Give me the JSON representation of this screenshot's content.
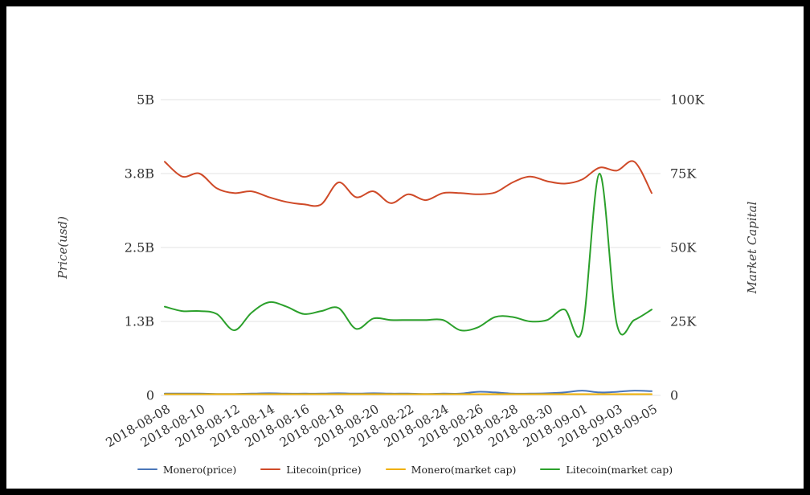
{
  "chart_data": {
    "type": "line",
    "title": "",
    "x": [
      "2018-08-08",
      "2018-08-09",
      "2018-08-10",
      "2018-08-11",
      "2018-08-12",
      "2018-08-13",
      "2018-08-14",
      "2018-08-15",
      "2018-08-16",
      "2018-08-17",
      "2018-08-18",
      "2018-08-19",
      "2018-08-20",
      "2018-08-21",
      "2018-08-22",
      "2018-08-23",
      "2018-08-24",
      "2018-08-25",
      "2018-08-26",
      "2018-08-27",
      "2018-08-28",
      "2018-08-29",
      "2018-08-30",
      "2018-08-31",
      "2018-09-01",
      "2018-09-02",
      "2018-09-03",
      "2018-09-04",
      "2018-09-05"
    ],
    "x_tick_labels": [
      "2018-08-08",
      "2018-08-10",
      "2018-08-12",
      "2018-08-14",
      "2018-08-16",
      "2018-08-18",
      "2018-08-20",
      "2018-08-22",
      "2018-08-24",
      "2018-08-26",
      "2018-08-28",
      "2018-08-30",
      "2018-09-01",
      "2018-09-03",
      "2018-09-05"
    ],
    "x_tick_indices": [
      0,
      2,
      4,
      6,
      8,
      10,
      12,
      14,
      16,
      18,
      20,
      22,
      24,
      26,
      28
    ],
    "left_axis": {
      "label": "Price(usd)",
      "ticks": [
        "0",
        "1.3B",
        "2.5B",
        "3.8B",
        "5B"
      ],
      "min": 0,
      "max": 5,
      "unit": "B"
    },
    "right_axis": {
      "label": "Market Capital",
      "ticks": [
        "0",
        "25K",
        "50K",
        "75K",
        "100K"
      ],
      "min": 0,
      "max": 100,
      "unit": "K"
    },
    "grid": "horizontal",
    "legend_position": "bottom",
    "series": [
      {
        "name": "Monero(price)",
        "axis": "left",
        "color": "#4a76b8",
        "values": [
          0.03,
          0.03,
          0.03,
          0.025,
          0.025,
          0.03,
          0.035,
          0.03,
          0.03,
          0.03,
          0.035,
          0.03,
          0.035,
          0.03,
          0.03,
          0.025,
          0.03,
          0.03,
          0.06,
          0.05,
          0.03,
          0.03,
          0.035,
          0.05,
          0.08,
          0.05,
          0.06,
          0.08,
          0.07
        ]
      },
      {
        "name": "Litecoin(price)",
        "axis": "left",
        "color": "#cf4a28",
        "values": [
          3.95,
          3.7,
          3.75,
          3.5,
          3.42,
          3.45,
          3.35,
          3.27,
          3.23,
          3.23,
          3.6,
          3.35,
          3.45,
          3.25,
          3.4,
          3.3,
          3.42,
          3.42,
          3.4,
          3.43,
          3.6,
          3.7,
          3.62,
          3.58,
          3.65,
          3.85,
          3.8,
          3.95,
          3.42
        ]
      },
      {
        "name": "Monero(market cap)",
        "axis": "right",
        "color": "#efaf00",
        "values": [
          0.4,
          0.4,
          0.4,
          0.4,
          0.4,
          0.4,
          0.4,
          0.4,
          0.4,
          0.4,
          0.4,
          0.4,
          0.4,
          0.4,
          0.4,
          0.4,
          0.4,
          0.4,
          0.4,
          0.4,
          0.4,
          0.4,
          0.4,
          0.4,
          0.4,
          0.4,
          0.4,
          0.4,
          0.4
        ]
      },
      {
        "name": "Litecoin(market cap)",
        "axis": "right",
        "color": "#2ba02b",
        "values": [
          30,
          28.5,
          28.5,
          27.5,
          22,
          28,
          31.5,
          30,
          27.5,
          28.5,
          29.5,
          22.5,
          26,
          25.5,
          25.5,
          25.5,
          25.5,
          22,
          23,
          26.5,
          26.5,
          25,
          25.5,
          29,
          22,
          75,
          24,
          25.5,
          29
        ]
      }
    ],
    "style": {
      "grid_color": "#e3e3e3",
      "tick_label_color": "#333333",
      "line_width": 2
    }
  }
}
